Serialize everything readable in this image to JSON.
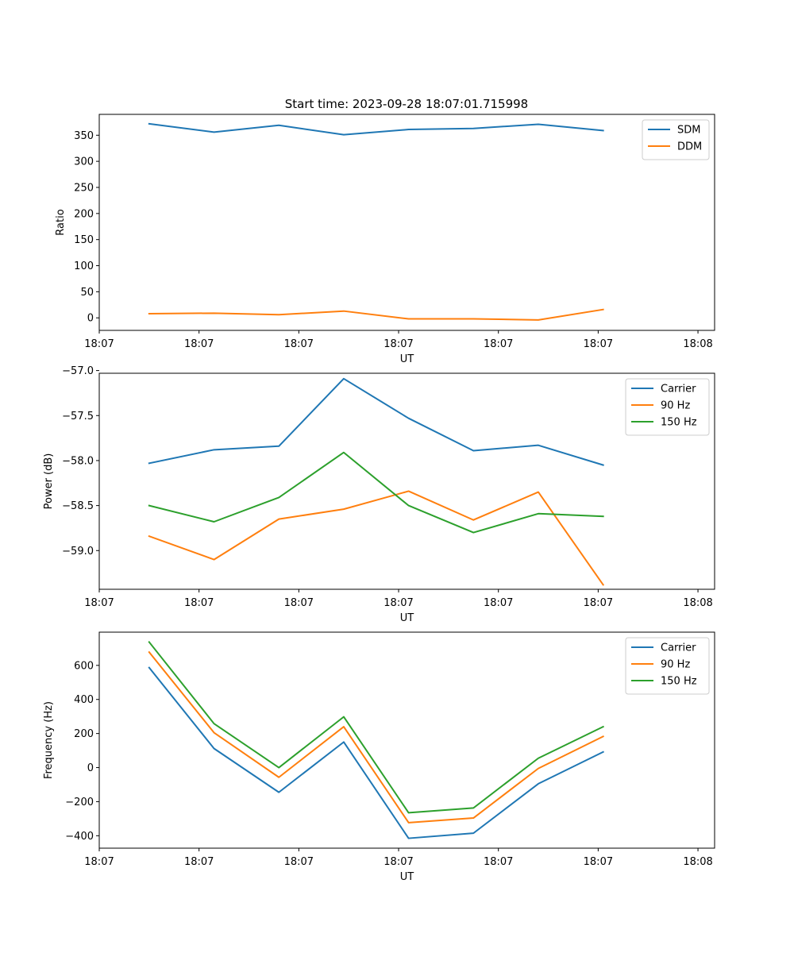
{
  "figure": {
    "title": "Start time: 2023-09-28 18:07:01.715998"
  },
  "colors": {
    "blue": "#1f77b4",
    "orange": "#ff7f0e",
    "green": "#2ca02c"
  },
  "chart_data": [
    {
      "type": "line",
      "xlabel": "UT",
      "ylabel": "Ratio",
      "xlim": [
        0,
        18.5
      ],
      "ylim": [
        -24,
        390
      ],
      "x_tick_values": [
        0,
        3,
        6,
        9,
        12,
        15,
        18
      ],
      "x_tick_labels": [
        "18:07",
        "18:07",
        "18:07",
        "18:07",
        "18:07",
        "18:07",
        "18:08"
      ],
      "y_ticks": [
        0,
        50,
        100,
        150,
        200,
        250,
        300,
        350
      ],
      "y_tick_labels": [
        "0",
        "50",
        "100",
        "150",
        "200",
        "250",
        "300",
        "350"
      ],
      "x": [
        1.5,
        3.45,
        5.4,
        7.35,
        9.3,
        11.25,
        13.2,
        15.15
      ],
      "legend_position": "top-right",
      "series": [
        {
          "name": "SDM",
          "color": "#1f77b4",
          "values": [
            372,
            356,
            369,
            351,
            361,
            363,
            371,
            359
          ]
        },
        {
          "name": "DDM",
          "color": "#ff7f0e",
          "values": [
            8,
            9,
            6,
            13,
            -2,
            -2,
            -4,
            16
          ]
        }
      ]
    },
    {
      "type": "line",
      "xlabel": "UT",
      "ylabel": "Power (dB)",
      "xlim": [
        0,
        18.5
      ],
      "ylim": [
        -59.43,
        -57.03
      ],
      "x_tick_values": [
        0,
        3,
        6,
        9,
        12,
        15,
        18
      ],
      "x_tick_labels": [
        "18:07",
        "18:07",
        "18:07",
        "18:07",
        "18:07",
        "18:07",
        "18:08"
      ],
      "y_ticks": [
        -59.0,
        -58.5,
        -58.0,
        -57.5,
        -57.0
      ],
      "y_tick_labels": [
        "−59.0",
        "−58.5",
        "−58.0",
        "−57.5",
        "−57.0"
      ],
      "x": [
        1.5,
        3.45,
        5.4,
        7.35,
        9.3,
        11.25,
        13.2,
        15.15
      ],
      "legend_position": "top-right",
      "series": [
        {
          "name": "Carrier",
          "color": "#1f77b4",
          "values": [
            -58.03,
            -57.88,
            -57.84,
            -57.09,
            -57.53,
            -57.89,
            -57.83,
            -58.05
          ]
        },
        {
          "name": "90 Hz",
          "color": "#ff7f0e",
          "values": [
            -58.84,
            -59.1,
            -58.65,
            -58.54,
            -58.34,
            -58.66,
            -58.35,
            -59.38
          ]
        },
        {
          "name": "150 Hz",
          "color": "#2ca02c",
          "values": [
            -58.5,
            -58.68,
            -58.41,
            -57.91,
            -58.5,
            -58.8,
            -58.59,
            -58.62
          ]
        }
      ]
    },
    {
      "type": "line",
      "xlabel": "UT",
      "ylabel": "Frequency (Hz)",
      "xlim": [
        0,
        18.5
      ],
      "ylim": [
        -473,
        795
      ],
      "x_tick_values": [
        0,
        3,
        6,
        9,
        12,
        15,
        18
      ],
      "x_tick_labels": [
        "18:07",
        "18:07",
        "18:07",
        "18:07",
        "18:07",
        "18:07",
        "18:08"
      ],
      "y_ticks": [
        -400,
        -200,
        0,
        200,
        400,
        600
      ],
      "y_tick_labels": [
        "−400",
        "−200",
        "0",
        "200",
        "400",
        "600"
      ],
      "x": [
        1.5,
        3.45,
        5.4,
        7.35,
        9.3,
        11.25,
        13.2,
        15.15
      ],
      "legend_position": "top-right",
      "series": [
        {
          "name": "Carrier",
          "color": "#1f77b4",
          "values": [
            587,
            112,
            -145,
            150,
            -415,
            -385,
            -95,
            92
          ]
        },
        {
          "name": "90 Hz",
          "color": "#ff7f0e",
          "values": [
            678,
            205,
            -57,
            240,
            -323,
            -296,
            -5,
            183
          ]
        },
        {
          "name": "150 Hz",
          "color": "#2ca02c",
          "values": [
            737,
            258,
            0,
            298,
            -265,
            -237,
            55,
            240
          ]
        }
      ]
    }
  ]
}
